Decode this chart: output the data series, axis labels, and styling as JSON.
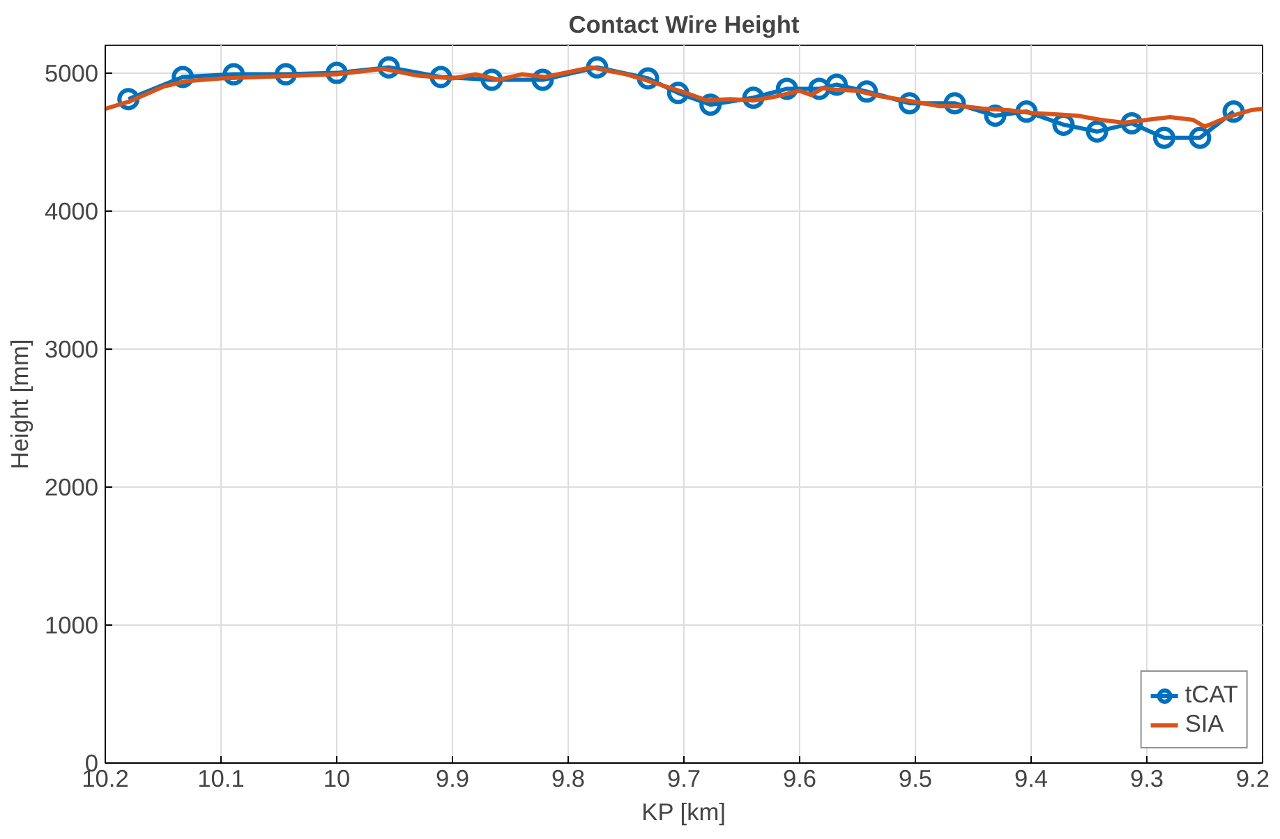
{
  "chart_data": {
    "type": "line",
    "title": "Contact Wire Height",
    "xlabel": "KP [km]",
    "ylabel": "Height [mm]",
    "xlim": [
      10.2,
      9.2
    ],
    "xticks": [
      10.2,
      10.1,
      10,
      9.9,
      9.8,
      9.7,
      9.6,
      9.5,
      9.4,
      9.3,
      9.2
    ],
    "ylim": [
      0,
      5200
    ],
    "yticks": [
      0,
      1000,
      2000,
      3000,
      4000,
      5000
    ],
    "grid": true,
    "legend": "bottom right",
    "series": [
      {
        "name": "tCAT",
        "color": "#0072bd",
        "marker": "circle",
        "x": [
          10.18,
          10.133,
          10.089,
          10.044,
          10.0,
          9.955,
          9.91,
          9.866,
          9.822,
          9.775,
          9.731,
          9.705,
          9.677,
          9.64,
          9.611,
          9.583,
          9.568,
          9.542,
          9.505,
          9.466,
          9.431,
          9.404,
          9.372,
          9.343,
          9.313,
          9.285,
          9.254,
          9.225
        ],
        "values": [
          4810,
          4970,
          4990,
          4990,
          5000,
          5040,
          4970,
          4950,
          4950,
          5040,
          4960,
          4855,
          4770,
          4820,
          4885,
          4885,
          4915,
          4865,
          4780,
          4780,
          4690,
          4720,
          4625,
          4575,
          4635,
          4530,
          4530,
          4720
        ]
      },
      {
        "name": "SIA",
        "color": "#d95319",
        "marker": "none",
        "x": [
          10.2,
          10.18,
          10.15,
          10.13,
          10.1,
          10.05,
          10.0,
          9.96,
          9.93,
          9.9,
          9.88,
          9.86,
          9.84,
          9.82,
          9.78,
          9.75,
          9.73,
          9.7,
          9.68,
          9.66,
          9.64,
          9.62,
          9.6,
          9.59,
          9.58,
          9.57,
          9.55,
          9.53,
          9.5,
          9.48,
          9.46,
          9.44,
          9.42,
          9.4,
          9.38,
          9.36,
          9.34,
          9.32,
          9.3,
          9.28,
          9.26,
          9.25,
          9.23,
          9.21,
          9.2
        ],
        "values": [
          4740,
          4790,
          4900,
          4940,
          4960,
          4975,
          4990,
          5030,
          4980,
          4960,
          4990,
          4950,
          4990,
          4970,
          5040,
          4990,
          4940,
          4860,
          4800,
          4810,
          4800,
          4830,
          4870,
          4840,
          4890,
          4880,
          4870,
          4830,
          4790,
          4760,
          4760,
          4740,
          4730,
          4710,
          4700,
          4690,
          4660,
          4640,
          4660,
          4680,
          4660,
          4610,
          4680,
          4730,
          4740
        ]
      }
    ]
  }
}
